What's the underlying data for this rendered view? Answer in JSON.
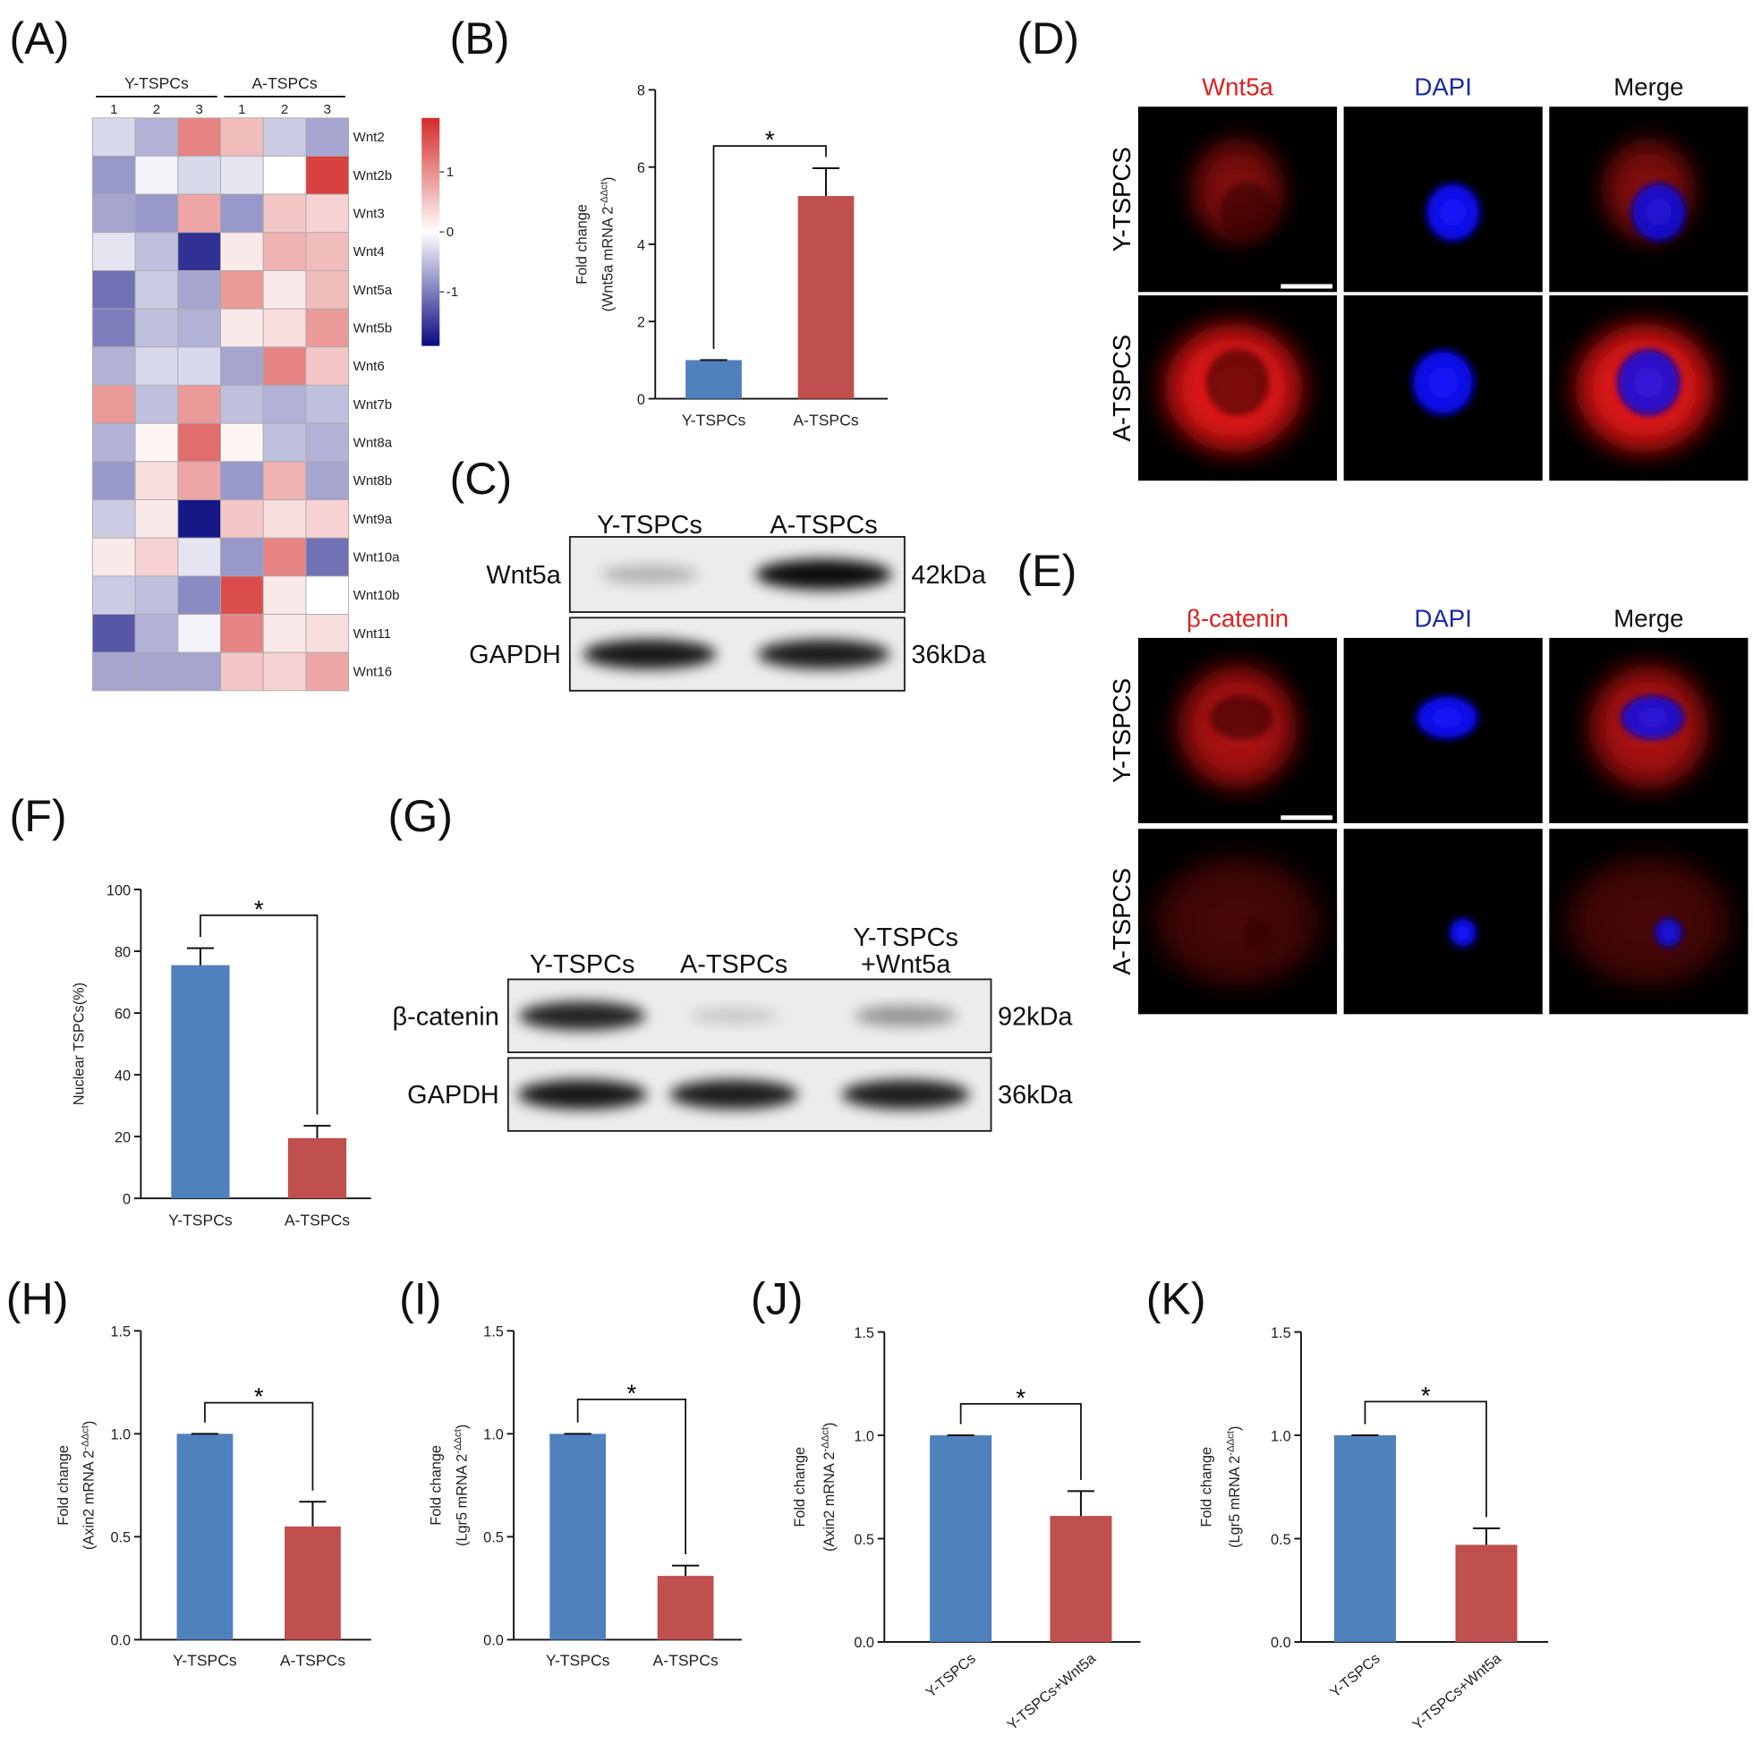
{
  "chart_data": [
    {
      "type": "heatmap",
      "panel": "(A)",
      "groups": [
        "Y-TSPCs",
        "A-TSPCs"
      ],
      "categories": [
        "1",
        "2",
        "3",
        "1",
        "2",
        "3"
      ],
      "rows": [
        "Wnt2",
        "Wnt2b",
        "Wnt3",
        "Wnt4",
        "Wnt5a",
        "Wnt5b",
        "Wnt6",
        "Wnt7b",
        "Wnt8a",
        "Wnt8b",
        "Wnt9a",
        "Wnt10a",
        "Wnt10b",
        "Wnt11",
        "Wnt16"
      ],
      "values": [
        [
          -0.3,
          -0.6,
          1.1,
          0.6,
          -0.4,
          -0.7
        ],
        [
          -0.8,
          -0.1,
          -0.3,
          -0.2,
          0,
          1.7
        ],
        [
          -0.7,
          -0.8,
          0.8,
          -0.8,
          0.5,
          0.4
        ],
        [
          -0.2,
          -0.5,
          -1.6,
          0.2,
          0.7,
          0.6
        ],
        [
          -1.1,
          -0.4,
          -0.7,
          0.9,
          0.2,
          0.6
        ],
        [
          -1.0,
          -0.5,
          -0.6,
          0.2,
          0.3,
          0.9
        ],
        [
          -0.6,
          -0.3,
          -0.3,
          -0.7,
          1.1,
          0.5
        ],
        [
          0.9,
          -0.5,
          0.9,
          -0.5,
          -0.6,
          -0.5
        ],
        [
          -0.6,
          0.1,
          1.3,
          0.1,
          -0.5,
          -0.6
        ],
        [
          -0.8,
          0.3,
          0.8,
          -0.8,
          0.7,
          -0.7
        ],
        [
          -0.4,
          0.2,
          -1.8,
          0.5,
          0.3,
          0.4
        ],
        [
          0.2,
          0.4,
          -0.2,
          -0.8,
          1.1,
          -1.1
        ],
        [
          -0.4,
          -0.5,
          -0.9,
          1.6,
          0.2,
          0
        ],
        [
          -1.3,
          -0.6,
          -0.1,
          1.1,
          0.2,
          0.3
        ],
        [
          -0.7,
          -0.7,
          -0.7,
          0.5,
          0.4,
          0.8
        ]
      ],
      "zlim": [
        -1.9,
        1.9
      ],
      "colorbar_ticks": [
        1,
        0,
        -1
      ],
      "colors": {
        "low": "#0a0a80",
        "mid": "#ffffff",
        "high": "#d42a2a"
      }
    },
    {
      "type": "bar",
      "panel": "(B)",
      "ylabel": "Fold change",
      "ylabel2": "(Wnt5a mRNA 2",
      "ylabel_sup": "-ΔΔct",
      "ylabel_end": ")",
      "categories": [
        "Y-TSPCs",
        "A-TSPCs"
      ],
      "values": [
        1,
        5.25
      ],
      "errors": [
        0,
        0.72
      ],
      "colors": [
        "#4f81bd",
        "#c0504d"
      ],
      "ylim": [
        0,
        8
      ],
      "yticks": [
        0,
        2,
        4,
        6,
        8
      ],
      "significance": "*"
    },
    {
      "type": "bar",
      "panel": "(F)",
      "ylabel": "Nuclear TSPCs(%)",
      "categories": [
        "Y-TSPCs",
        "A-TSPCs"
      ],
      "values": [
        75.5,
        19.5
      ],
      "errors": [
        5.5,
        4
      ],
      "colors": [
        "#4f81bd",
        "#c0504d"
      ],
      "ylim": [
        0,
        100
      ],
      "yticks": [
        0,
        20,
        40,
        60,
        80,
        100
      ],
      "significance": "*"
    },
    {
      "type": "bar",
      "panel": "(H)",
      "ylabel": "Fold change",
      "ylabel2": "(Axin2 mRNA 2",
      "ylabel_sup": "-ΔΔct",
      "ylabel_end": ")",
      "categories": [
        "Y-TSPCs",
        "A-TSPCs"
      ],
      "values": [
        1,
        0.55
      ],
      "errors": [
        0,
        0.12
      ],
      "colors": [
        "#4f81bd",
        "#c0504d"
      ],
      "ylim": [
        0,
        1.5
      ],
      "yticks": [
        {
          "value": 0,
          "label": "0.0"
        },
        0.5,
        {
          "value": 1,
          "label": "1.0"
        },
        {
          "value": 1.5,
          "label": "1.5"
        }
      ],
      "significance": "*"
    },
    {
      "type": "bar",
      "panel": "(I)",
      "ylabel": "Fold change",
      "ylabel2": "(Lgr5 mRNA 2",
      "ylabel_sup": "-ΔΔct",
      "ylabel_end": ")",
      "categories": [
        "Y-TSPCs",
        "A-TSPCs"
      ],
      "values": [
        1,
        0.31
      ],
      "errors": [
        0,
        0.05
      ],
      "colors": [
        "#4f81bd",
        "#c0504d"
      ],
      "ylim": [
        0,
        1.5
      ],
      "yticks": [
        {
          "value": 0,
          "label": "0.0"
        },
        0.5,
        {
          "value": 1,
          "label": "1.0"
        },
        {
          "value": 1.5,
          "label": "1.5"
        }
      ],
      "significance": "*"
    },
    {
      "type": "bar",
      "panel": "(J)",
      "ylabel": "Fold change",
      "ylabel2": "(Axin2 mRNA 2",
      "ylabel_sup": "-ΔΔct",
      "ylabel_end": ")",
      "categories": [
        "Y-TSPCs",
        "Y-TSPCs+Wnt5a"
      ],
      "values": [
        1,
        0.61
      ],
      "errors": [
        0,
        0.12
      ],
      "colors": [
        "#4f81bd",
        "#c0504d"
      ],
      "ylim": [
        0,
        1.5
      ],
      "yticks": [
        {
          "value": 0,
          "label": "0.0"
        },
        0.5,
        {
          "value": 1,
          "label": "1.0"
        },
        {
          "value": 1.5,
          "label": "1.5"
        }
      ],
      "significance": "*",
      "xtick_rotation": -40
    },
    {
      "type": "bar",
      "panel": "(K)",
      "ylabel": "Fold change",
      "ylabel2": "(Lgr5 mRNA 2",
      "ylabel_sup": "-ΔΔct",
      "ylabel_end": ")",
      "categories": [
        "Y-TSPCs",
        "Y-TSPCs+Wnt5a"
      ],
      "values": [
        1,
        0.47
      ],
      "errors": [
        0,
        0.08
      ],
      "colors": [
        "#4f81bd",
        "#c0504d"
      ],
      "ylim": [
        0,
        1.5
      ],
      "yticks": [
        {
          "value": 0,
          "label": "0.0"
        },
        0.5,
        {
          "value": 1,
          "label": "1.0"
        },
        {
          "value": 1.5,
          "label": "1.5"
        }
      ],
      "significance": "*",
      "xtick_rotation": -40
    }
  ],
  "blots": [
    {
      "panel": "(C)",
      "columns": [
        [
          "Y-TSPCs"
        ],
        [
          "A-TSPCs"
        ]
      ],
      "rows": [
        {
          "label": "Wnt5a",
          "size": "42kDa"
        },
        {
          "label": "GAPDH",
          "size": "36kDa"
        }
      ]
    },
    {
      "panel": "(G)",
      "columns": [
        [
          "Y-TSPCs"
        ],
        [
          "A-TSPCs"
        ],
        [
          "Y-TSPCs",
          "+Wnt5a"
        ]
      ],
      "rows": [
        {
          "label": "β-catenin",
          "size": "92kDa"
        },
        {
          "label": "GAPDH",
          "size": "36kDa"
        }
      ]
    }
  ],
  "images": [
    {
      "panel": "(D)",
      "columns": [
        {
          "label": "Wnt5a",
          "color": "#e02020"
        },
        {
          "label": "DAPI",
          "color": "#1a2aa8"
        },
        {
          "label": "Merge",
          "color": "#111111"
        }
      ],
      "rows": [
        "Y-TSPCS",
        "A-TSPCS"
      ]
    },
    {
      "panel": "(E)",
      "columns": [
        {
          "label": "β-catenin",
          "color": "#e02020"
        },
        {
          "label": "DAPI",
          "color": "#1a2aa8"
        },
        {
          "label": "Merge",
          "color": "#111111"
        }
      ],
      "rows": [
        "Y-TSPCS",
        "A-TSPCS"
      ]
    }
  ]
}
